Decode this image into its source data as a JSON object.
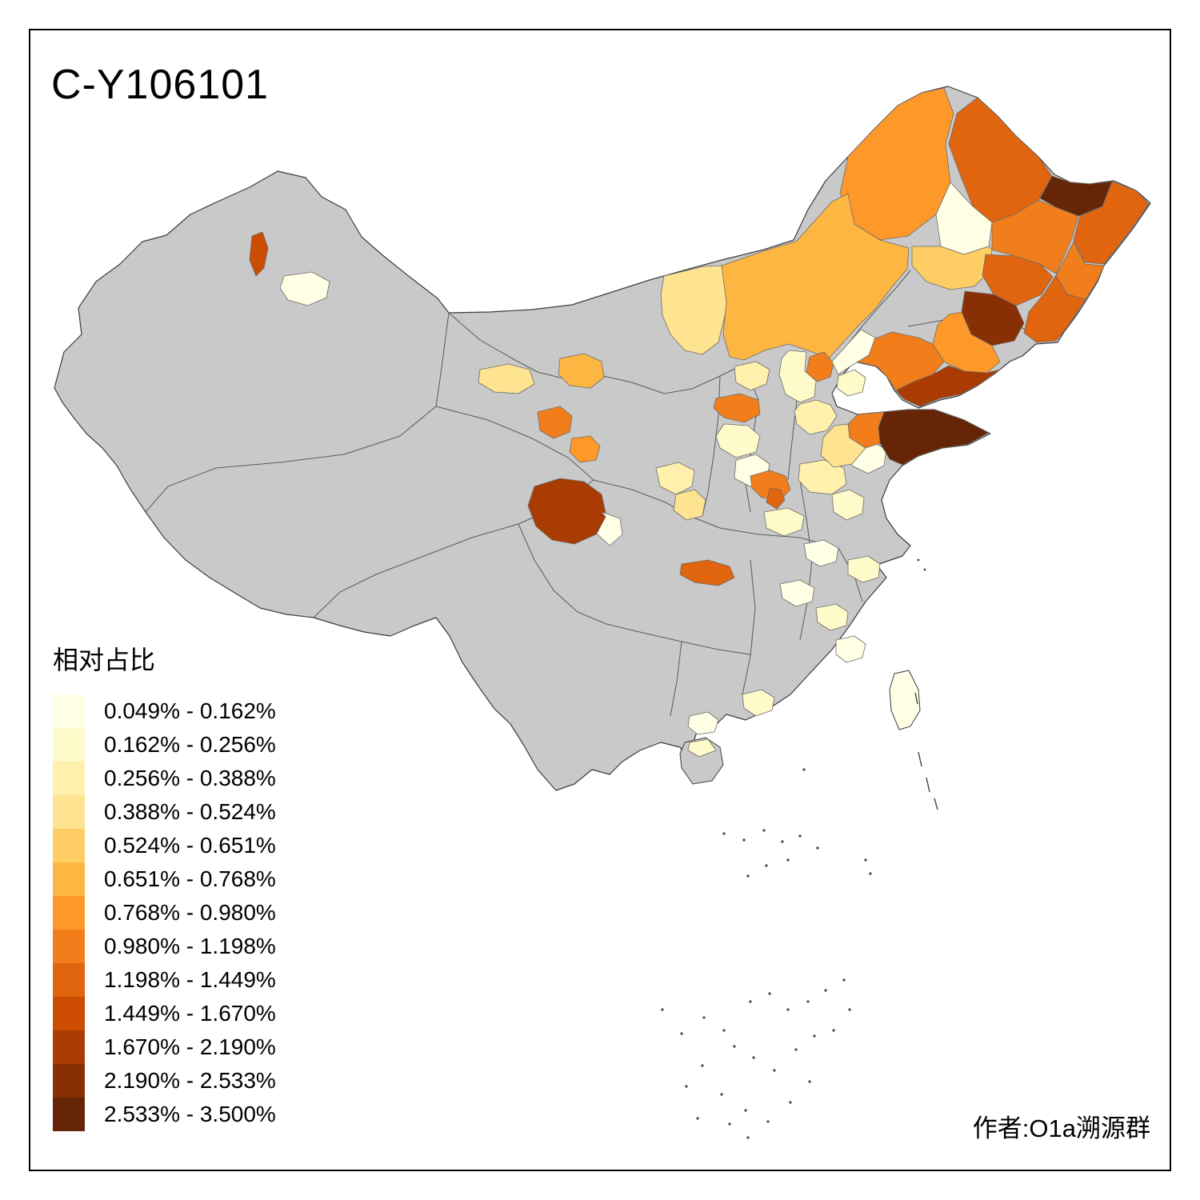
{
  "title": "C-Y106101",
  "attribution": "作者:O1a溯源群",
  "legend": {
    "title": "相对占比",
    "classes": [
      {
        "label": "0.049% - 0.162%",
        "color": "#FFFFE5"
      },
      {
        "label": "0.162% - 0.256%",
        "color": "#FFFACA"
      },
      {
        "label": "0.256% - 0.388%",
        "color": "#FFF0AE"
      },
      {
        "label": "0.388% - 0.524%",
        "color": "#FEE391"
      },
      {
        "label": "0.524% - 0.651%",
        "color": "#FECE65"
      },
      {
        "label": "0.651% - 0.768%",
        "color": "#FEB642"
      },
      {
        "label": "0.768% - 0.980%",
        "color": "#FE9929"
      },
      {
        "label": "0.980% - 1.198%",
        "color": "#F27E1B"
      },
      {
        "label": "1.198% - 1.449%",
        "color": "#E1640E"
      },
      {
        "label": "1.449% - 1.670%",
        "color": "#CC4C02"
      },
      {
        "label": "1.670% - 2.190%",
        "color": "#AA3C03"
      },
      {
        "label": "2.190% - 2.533%",
        "color": "#882F05"
      },
      {
        "label": "2.533% - 3.500%",
        "color": "#662506"
      }
    ]
  },
  "map": {
    "base_color": "#C9C9C9",
    "border_color": "#4D4D4D",
    "background": "#FFFFFF",
    "regions": {
      "r1": 7,
      "r2": 9,
      "r3": 13,
      "r4": 9,
      "r5": 8,
      "r6": 1,
      "r7": 8,
      "r8": 9,
      "r9": 5,
      "r10": 9,
      "r11": 12,
      "r13": 7,
      "r14": 11,
      "r15": 8,
      "r16": 4,
      "r17": 6,
      "r18": 8,
      "r19": 2,
      "r20": 3,
      "r21": 1,
      "r22": 8,
      "r23": 2,
      "r24": 1,
      "r25": 8,
      "r26": 9,
      "r27": 3,
      "r28": 2,
      "r29": 1,
      "r30": 13,
      "r31": 8,
      "r32": 4,
      "r33": 4,
      "r34": 6,
      "r35": 8,
      "r36": 7,
      "r37": 3,
      "r38": 4,
      "r39": 11,
      "r40": 1,
      "r41": 9,
      "r42": 2,
      "r43": 1,
      "r44": 2,
      "r45": 1,
      "r46": 2,
      "r47": 1,
      "r48": 2,
      "r49": 1,
      "r50": 10,
      "r51": 1,
      "r52": 2,
      "r53": 3,
      "taiwan": 1,
      "hainan_north": 2
    }
  }
}
